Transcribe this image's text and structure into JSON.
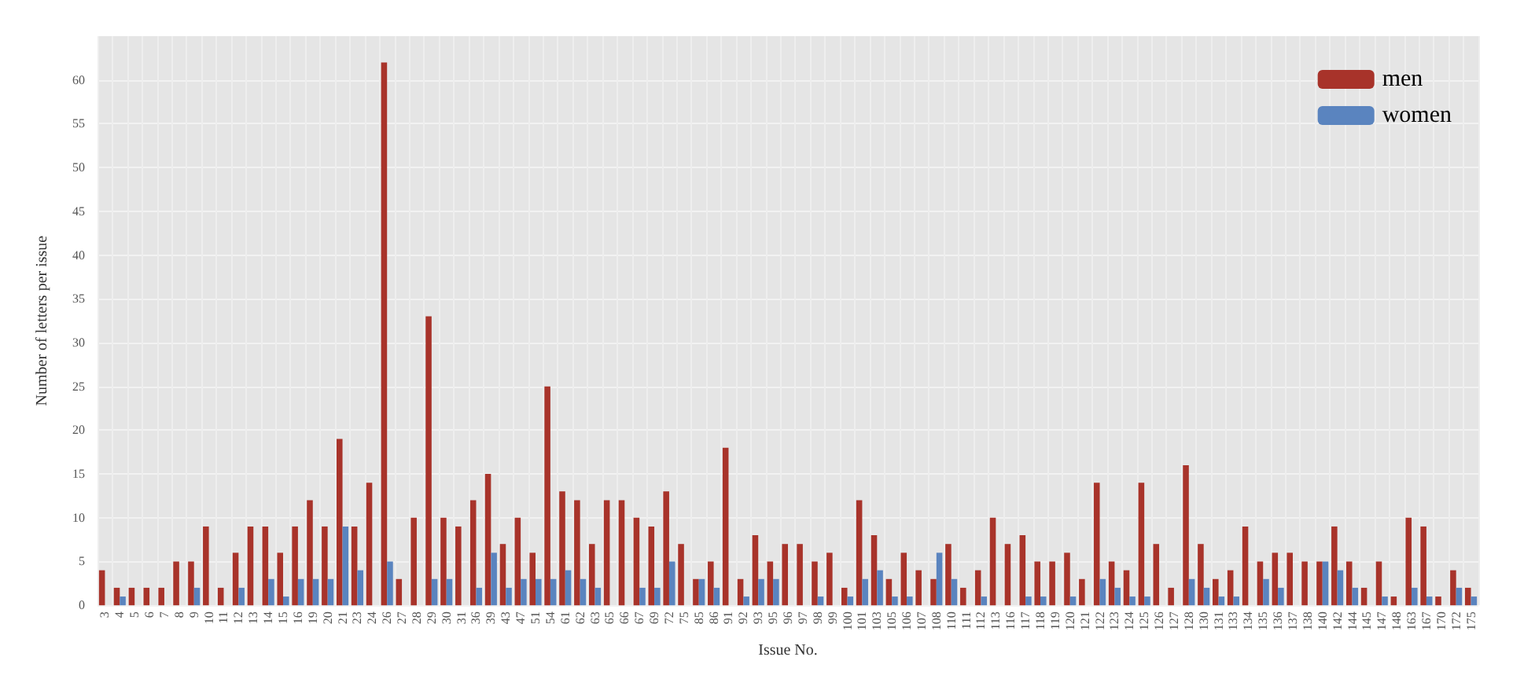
{
  "chart_data": {
    "type": "bar",
    "xlabel": "Issue No.",
    "ylabel": "Number of letters per issue",
    "categories": [
      "3",
      "4",
      "5",
      "6",
      "7",
      "8",
      "9",
      "10",
      "11",
      "12",
      "13",
      "14",
      "15",
      "16",
      "19",
      "20",
      "21",
      "23",
      "24",
      "26",
      "27",
      "28",
      "29",
      "30",
      "31",
      "36",
      "39",
      "43",
      "47",
      "51",
      "54",
      "61",
      "62",
      "63",
      "65",
      "66",
      "67",
      "69",
      "72",
      "75",
      "85",
      "86",
      "91",
      "92",
      "93",
      "95",
      "96",
      "97",
      "98",
      "99",
      "100",
      "101",
      "103",
      "105",
      "106",
      "107",
      "108",
      "110",
      "111",
      "112",
      "113",
      "116",
      "117",
      "118",
      "119",
      "120",
      "121",
      "122",
      "123",
      "124",
      "125",
      "126",
      "127",
      "128",
      "130",
      "131",
      "133",
      "134",
      "135",
      "136",
      "137",
      "138",
      "140",
      "142",
      "144",
      "145",
      "147",
      "148",
      "163",
      "167",
      "170",
      "172",
      "175"
    ],
    "series": [
      {
        "name": "men",
        "color": "#a8332a",
        "values": [
          4,
          2,
          2,
          2,
          2,
          5,
          5,
          9,
          2,
          6,
          9,
          9,
          6,
          9,
          12,
          9,
          19,
          9,
          14,
          62,
          3,
          10,
          33,
          10,
          9,
          12,
          15,
          7,
          10,
          6,
          25,
          13,
          12,
          7,
          12,
          12,
          10,
          9,
          13,
          7,
          3,
          5,
          18,
          3,
          8,
          5,
          7,
          7,
          5,
          6,
          2,
          12,
          8,
          3,
          6,
          4,
          3,
          7,
          2,
          4,
          10,
          7,
          8,
          5,
          5,
          6,
          3,
          14,
          5,
          4,
          14,
          7,
          2,
          16,
          7,
          3,
          4,
          9,
          5,
          6,
          6,
          5,
          5,
          9,
          5,
          2,
          5,
          1,
          10,
          9,
          1,
          4,
          2
        ]
      },
      {
        "name": "women",
        "color": "#5a84bf",
        "values": [
          0,
          1,
          0,
          0,
          0,
          0,
          2,
          0,
          0,
          2,
          0,
          3,
          1,
          3,
          3,
          3,
          9,
          4,
          0,
          5,
          0,
          0,
          3,
          3,
          0,
          2,
          6,
          2,
          3,
          3,
          3,
          4,
          3,
          2,
          0,
          0,
          2,
          2,
          5,
          0,
          3,
          2,
          0,
          1,
          3,
          3,
          0,
          0,
          1,
          0,
          1,
          3,
          4,
          1,
          1,
          0,
          6,
          3,
          0,
          1,
          0,
          0,
          1,
          1,
          0,
          1,
          0,
          3,
          2,
          1,
          1,
          0,
          0,
          3,
          2,
          1,
          1,
          0,
          3,
          2,
          0,
          0,
          5,
          4,
          2,
          0,
          1,
          0,
          2,
          1,
          0,
          2,
          1
        ]
      }
    ],
    "ylim": [
      0,
      65
    ],
    "yticks": [
      0,
      5,
      10,
      15,
      20,
      25,
      30,
      35,
      40,
      45,
      50,
      55,
      60
    ],
    "grid": true,
    "legend": "top right"
  }
}
